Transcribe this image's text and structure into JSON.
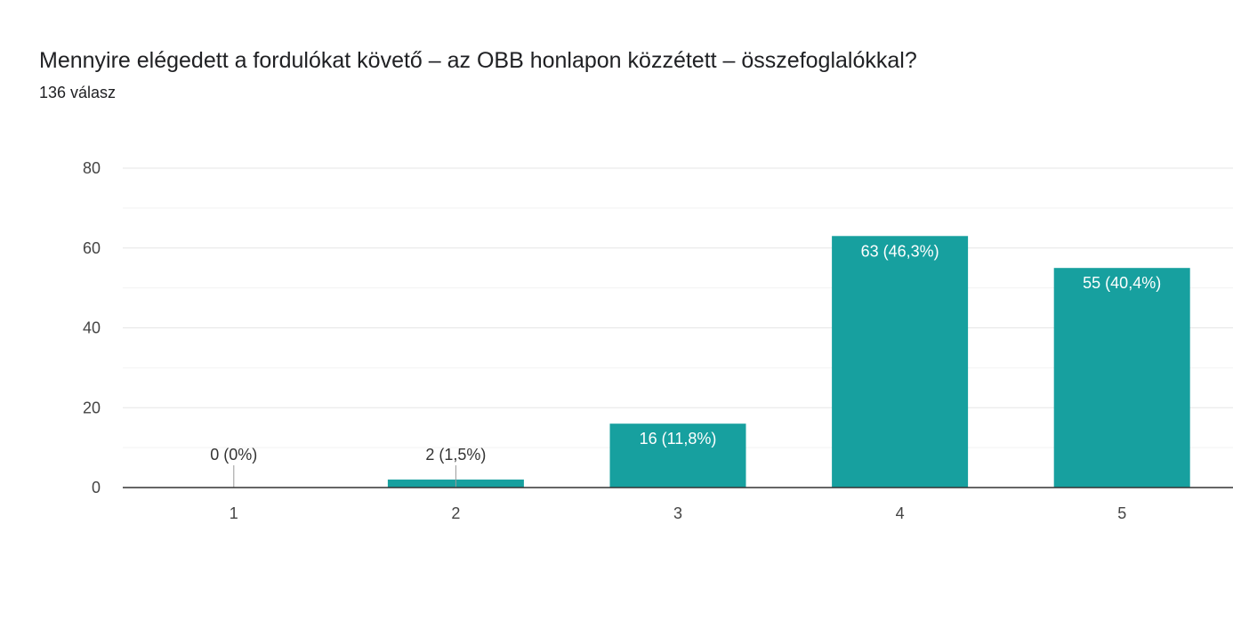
{
  "header": {
    "title": "Mennyire elégedett a fordulókat követő – az OBB honlapon közzétett – összefoglalókkal?",
    "subtitle": "136 válasz"
  },
  "colors": {
    "bar": "#17a09f",
    "grid_major": "#e6e6e6",
    "grid_minor": "#f2f2f2",
    "axis": "#333333",
    "label_outside": "#333333",
    "label_inside": "#ffffff"
  },
  "chart_data": {
    "type": "bar",
    "title": "Mennyire elégedett a fordulókat követő – az OBB honlapon közzétett – összefoglalókkal?",
    "subtitle": "136 válasz",
    "categories": [
      "1",
      "2",
      "3",
      "4",
      "5"
    ],
    "values": [
      0,
      2,
      16,
      63,
      55
    ],
    "data_labels": [
      "0 (0%)",
      "2 (1,5%)",
      "16 (11,8%)",
      "63 (46,3%)",
      "55 (40,4%)"
    ],
    "ylim": [
      0,
      80
    ],
    "yticks": [
      0,
      20,
      40,
      60,
      80
    ],
    "grid": true,
    "xlabel": "",
    "ylabel": ""
  }
}
